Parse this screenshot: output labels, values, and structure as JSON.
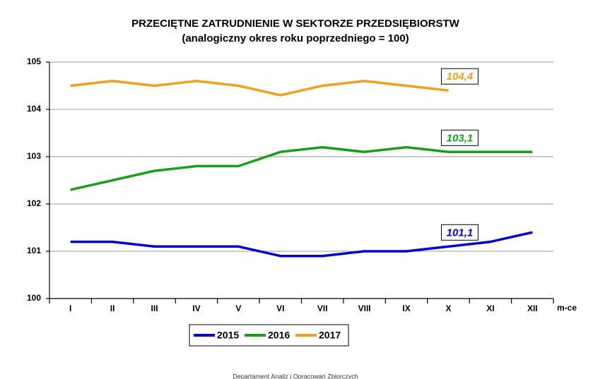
{
  "chart_data": {
    "type": "line",
    "title": "PRZECIĘTNE ZATRUDNIENIE W SEKTORZE PRZEDSIĘBIORSTW",
    "subtitle": "(analogiczny okres roku poprzedniego = 100)",
    "x_label": "m-ce",
    "categories": [
      "I",
      "II",
      "III",
      "IV",
      "V",
      "VI",
      "VII",
      "VIII",
      "IX",
      "X",
      "XI",
      "XII"
    ],
    "series": [
      {
        "name": "2015",
        "color": "#0000cc",
        "label": "101,1",
        "values": [
          101.2,
          101.2,
          101.1,
          101.1,
          101.1,
          100.9,
          100.9,
          101.0,
          101.0,
          101.1,
          101.2,
          101.4
        ]
      },
      {
        "name": "2016",
        "color": "#1a9e1a",
        "label": "103,1",
        "values": [
          102.3,
          102.5,
          102.7,
          102.8,
          102.8,
          103.1,
          103.2,
          103.1,
          103.2,
          103.1,
          103.1,
          103.1
        ]
      },
      {
        "name": "2017",
        "color": "#f0a020",
        "label": "104,4",
        "values": [
          104.5,
          104.6,
          104.5,
          104.6,
          104.5,
          104.3,
          104.5,
          104.6,
          104.5,
          104.4,
          null,
          null
        ]
      }
    ],
    "ylim": [
      100,
      105
    ],
    "yticks": [
      100,
      101,
      102,
      103,
      104,
      105
    ],
    "grid": true,
    "footer": "Departament Analiz i Opracowań Zbiorczych"
  }
}
